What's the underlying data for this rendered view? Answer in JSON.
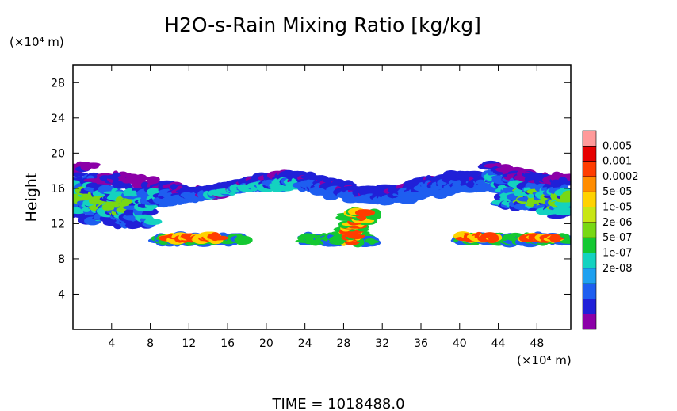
{
  "chart_data": {
    "type": "heatmap",
    "title": "H2O-s-Rain Mixing Ratio [kg/kg]",
    "ylabel": "Height",
    "y_unit": "(×10⁴ m)",
    "x_unit": "(×10⁴ m)",
    "xlim": [
      0,
      51.5
    ],
    "ylim": [
      0,
      30
    ],
    "x_ticks": [
      "4",
      "8",
      "12",
      "16",
      "20",
      "24",
      "28",
      "32",
      "36",
      "40",
      "44",
      "48"
    ],
    "y_ticks": [
      "4",
      "8",
      "12",
      "16",
      "20",
      "24",
      "28"
    ],
    "grid": false,
    "legend_position": "right",
    "colorbar": {
      "labels": [
        "0.005",
        "0.001",
        "0.0002",
        "5e-05",
        "1e-05",
        "2e-06",
        "5e-07",
        "1e-07",
        "2e-08"
      ],
      "colors": [
        "#8c00a8",
        "#2020d8",
        "#1e5ef0",
        "#1ea0f0",
        "#14d2c0",
        "#14c832",
        "#78d814",
        "#c8e614",
        "#ffd200",
        "#ff8c00",
        "#ff3c00",
        "#e60000",
        "#ff9a9a"
      ]
    },
    "footer": "TIME = 1018488.0"
  }
}
